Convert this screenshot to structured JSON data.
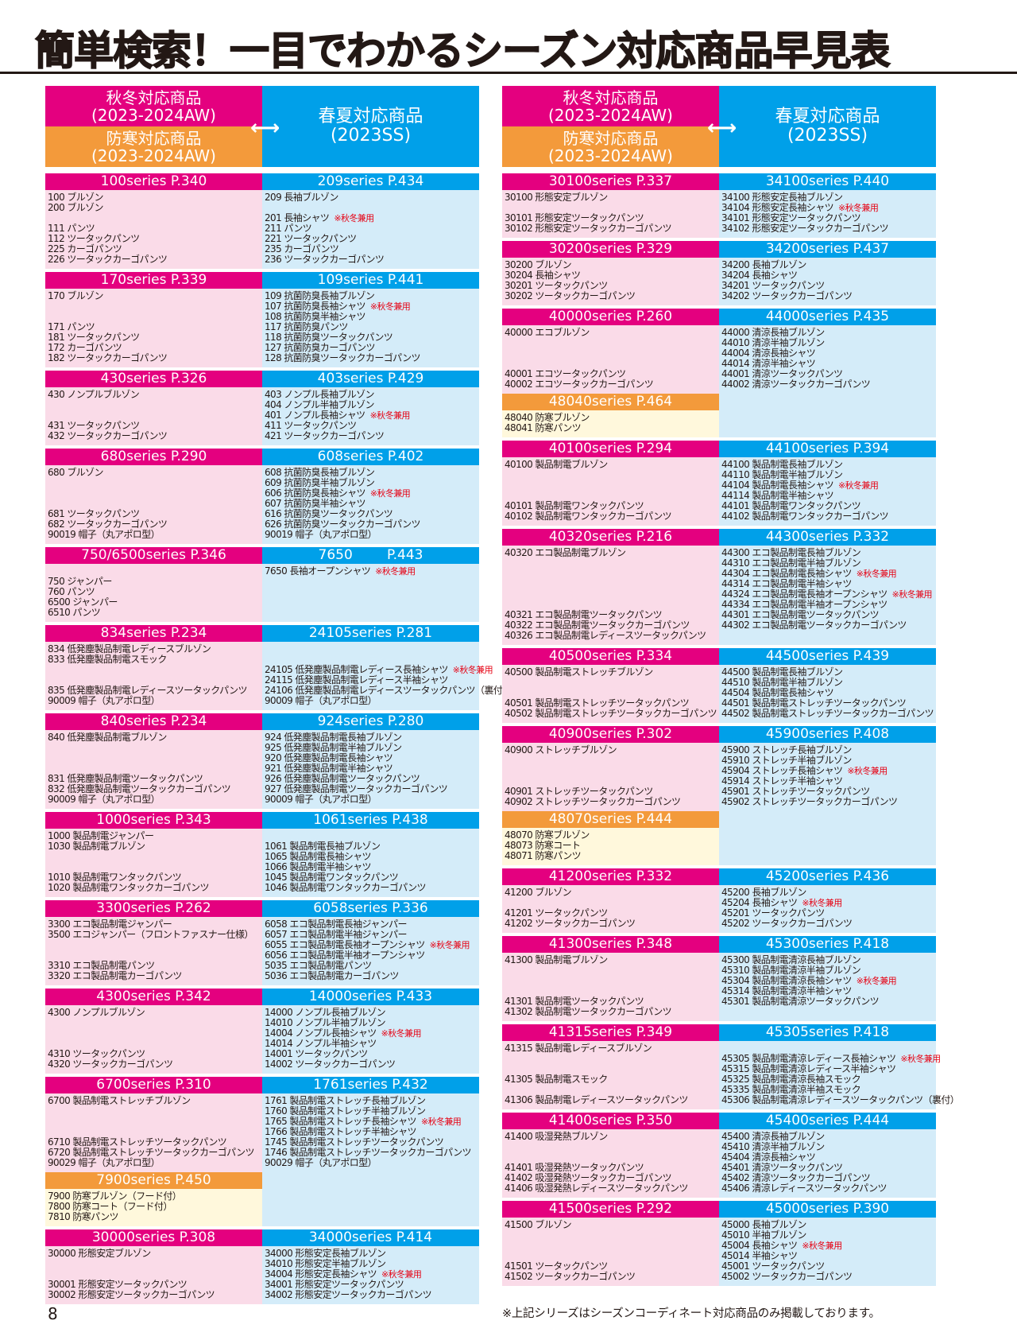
{
  "title": "簡単検索！一目でわかるシーズン対応商品早見表",
  "header": {
    "autumn_label": "秋冬対応商品",
    "autumn_season": "(2023-2024AW)",
    "cold_label": "防寒対応商品",
    "cold_season": "(2023-2024AW)",
    "ss_label": "春夏対応商品",
    "ss_season": "(2023SS)",
    "arrow": "⟷"
  },
  "colors": {
    "autumn": "#e4007f",
    "spring_summer": "#00a0e9",
    "cold": "#f39a3b",
    "note": "#e60012"
  },
  "columns": [
    {
      "blocks": [
        {
          "left": {
            "header": "100series P.340",
            "lines": [
              "100 ブルゾン",
              "200 ブルゾン",
              "",
              "111 パンツ",
              "112 ツータックパンツ",
              "225 カーゴパンツ",
              "226 ツータックカーゴパンツ"
            ]
          },
          "right": {
            "header": "209series P.434",
            "lines": [
              "209 長袖ブルゾン",
              "",
              {
                "t": "201 長袖シャツ",
                "note": "※秋冬兼用"
              },
              "211 パンツ",
              "221 ツータックパンツ",
              "235 カーゴパンツ",
              "236 ツータックカーゴパンツ"
            ]
          }
        },
        {
          "left": {
            "header": "170series P.339",
            "lines": [
              "170 ブルゾン",
              "",
              "",
              "171 パンツ",
              "181 ツータックパンツ",
              "172 カーゴパンツ",
              "182 ツータックカーゴパンツ"
            ]
          },
          "right": {
            "header": "109series P.441",
            "lines": [
              "109 抗菌防臭長袖ブルゾン",
              {
                "t": "107 抗菌防臭長袖シャツ",
                "note": "※秋冬兼用"
              },
              "108 抗菌防臭半袖シャツ",
              "117 抗菌防臭パンツ",
              "118 抗菌防臭ツータックパンツ",
              "127 抗菌防臭カーゴパンツ",
              "128 抗菌防臭ツータックカーゴパンツ"
            ]
          }
        },
        {
          "left": {
            "header": "430series P.326",
            "lines": [
              "430 ノンプルブルゾン",
              "",
              "",
              "431 ツータックパンツ",
              "432 ツータックカーゴパンツ"
            ]
          },
          "right": {
            "header": "403series P.429",
            "lines": [
              "403 ノンプル長袖ブルゾン",
              "404 ノンプル半袖ブルゾン",
              {
                "t": "401 ノンプル長袖シャツ",
                "note": "※秋冬兼用"
              },
              "411 ツータックパンツ",
              "421 ツータックカーゴパンツ"
            ]
          }
        },
        {
          "left": {
            "header": "680series P.290",
            "lines": [
              "680 ブルゾン",
              "",
              "",
              "",
              "681 ツータックパンツ",
              "682 ツータックカーゴパンツ",
              "90019 帽子（丸アポロ型）"
            ]
          },
          "right": {
            "header": "608series P.402",
            "lines": [
              "608 抗菌防臭長袖ブルゾン",
              "609 抗菌防臭半袖ブルゾン",
              {
                "t": "606 抗菌防臭長袖シャツ",
                "note": "※秋冬兼用"
              },
              "607 抗菌防臭半袖シャツ",
              "616 抗菌防臭ツータックパンツ",
              "626 抗菌防臭ツータックカーゴパンツ",
              "90019 帽子（丸アポロ型）"
            ]
          }
        },
        {
          "left": {
            "header": "750/6500series P.346",
            "lines": [
              "",
              "750 ジャンパー",
              "760 パンツ",
              "6500 ジャンパー",
              "6510 パンツ"
            ]
          },
          "right": {
            "header": "7650        P.443",
            "lines": [
              {
                "t": "7650 長袖オープンシャツ",
                "note": "※秋冬兼用"
              }
            ]
          }
        },
        {
          "left": {
            "header": "834series P.234",
            "lines": [
              "834 低発塵製品制電レディースブルゾン",
              "833 低発塵製品制電スモック",
              "",
              "",
              "835 低発塵製品制電レディースツータックパンツ",
              "90009 帽子（丸アポロ型）"
            ]
          },
          "right": {
            "header": "24105series P.281",
            "lines": [
              "",
              "",
              {
                "t": "24105 低発塵製品制電レディース長袖シャツ",
                "note": "※秋冬兼用"
              },
              "24115 低発塵製品制電レディース半袖シャツ",
              "24106 低発塵製品制電レディースツータックパンツ（裏付）",
              "90009 帽子（丸アポロ型）"
            ]
          }
        },
        {
          "left": {
            "header": "840series P.234",
            "lines": [
              "840 低発塵製品制電ブルゾン",
              "",
              "",
              "",
              "831 低発塵製品制電ツータックパンツ",
              "832 低発塵製品制電ツータックカーゴパンツ",
              "90009 帽子（丸アポロ型）"
            ]
          },
          "right": {
            "header": "924series P.280",
            "lines": [
              "924 低発塵製品制電長袖ブルゾン",
              "925 低発塵製品制電半袖ブルゾン",
              "920 低発塵製品制電長袖シャツ",
              "921 低発塵製品制電半袖シャツ",
              "926 低発塵製品制電ツータックパンツ",
              "927 低発塵製品制電ツータックカーゴパンツ",
              "90009 帽子（丸アポロ型）"
            ]
          }
        },
        {
          "left": {
            "header": "1000series P.343",
            "lines": [
              "1000 製品制電ジャンパー",
              "1030 製品制電ブルゾン",
              "",
              "",
              "1010 製品制電ワンタックパンツ",
              "1020 製品制電ワンタックカーゴパンツ"
            ]
          },
          "right": {
            "header": "1061series P.438",
            "lines": [
              "",
              "1061 製品制電長袖ブルゾン",
              "1065 製品制電長袖シャツ",
              "1066 製品制電半袖シャツ",
              "1045 製品制電ワンタックパンツ",
              "1046 製品制電ワンタックカーゴパンツ"
            ]
          }
        },
        {
          "left": {
            "header": "3300series P.262",
            "lines": [
              "3300 エコ製品制電ジャンパー",
              "3500 エコジャンパー（フロントファスナー仕様）",
              "",
              "",
              "3310 エコ製品制電パンツ",
              "3320 エコ製品制電カーゴパンツ"
            ]
          },
          "right": {
            "header": "6058series P.336",
            "lines": [
              "6058 エコ製品制電長袖ジャンパー",
              "6057 エコ製品制電半袖ジャンパー",
              {
                "t": "6055 エコ製品制電長袖オープンシャツ",
                "note": "※秋冬兼用"
              },
              "6056 エコ製品制電半袖オープンシャツ",
              "5035 エコ製品制電パンツ",
              "5036 エコ製品制電カーゴパンツ"
            ]
          }
        },
        {
          "left": {
            "header": "4300series P.342",
            "lines": [
              "4300 ノンプルブルゾン",
              "",
              "",
              "",
              "4310 ツータックパンツ",
              "4320 ツータックカーゴパンツ"
            ]
          },
          "right": {
            "header": "14000series P.433",
            "lines": [
              "14000 ノンプル長袖ブルゾン",
              "14010 ノンプル半袖ブルゾン",
              {
                "t": "14004 ノンプル長袖シャツ",
                "note": "※秋冬兼用"
              },
              "14014 ノンプル半袖シャツ",
              "14001 ツータックパンツ",
              "14002 ツータックカーゴパンツ"
            ]
          }
        },
        {
          "left": {
            "header": "6700series P.310",
            "lines": [
              "6700 製品制電ストレッチブルゾン",
              "",
              "",
              "",
              "6710 製品制電ストレッチツータックパンツ",
              "6720 製品制電ストレッチツータックカーゴパンツ",
              "90029 帽子（丸アポロ型）"
            ]
          },
          "left_cold": {
            "header": "7900series P.450",
            "lines": [
              "7900 防寒ブルゾン（フード付）",
              "7800 防寒コート（フード付）",
              "7810 防寒パンツ"
            ]
          },
          "right": {
            "header": "1761series P.432",
            "lines": [
              "1761 製品制電ストレッチ長袖ブルゾン",
              "1760 製品制電ストレッチ半袖ブルゾン",
              {
                "t": "1765 製品制電ストレッチ長袖シャツ",
                "note": "※秋冬兼用"
              },
              "1766 製品制電ストレッチ半袖シャツ",
              "1745 製品制電ストレッチツータックパンツ",
              "1746 製品制電ストレッチツータックカーゴパンツ",
              "90029 帽子（丸アポロ型）"
            ]
          }
        },
        {
          "left": {
            "header": "30000series P.308",
            "lines": [
              "30000 形態安定ブルゾン",
              "",
              "",
              "30001 形態安定ツータックパンツ",
              "30002 形態安定ツータックカーゴパンツ"
            ]
          },
          "right": {
            "header": "34000series P.414",
            "lines": [
              "34000 形態安定長袖ブルゾン",
              "34010 形態安定半袖ブルゾン",
              {
                "t": "34004 形態安定長袖シャツ",
                "note": "※秋冬兼用"
              },
              "34001 形態安定ツータックパンツ",
              "34002 形態安定ツータックカーゴパンツ"
            ]
          }
        }
      ]
    },
    {
      "blocks": [
        {
          "left": {
            "header": "30100series P.337",
            "lines": [
              "30100 形態安定ブルゾン",
              "",
              "30101 形態安定ツータックパンツ",
              "30102 形態安定ツータックカーゴパンツ"
            ]
          },
          "right": {
            "header": "34100series P.440",
            "lines": [
              "34100 形態安定長袖ブルゾン",
              {
                "t": "34104 形態安定長袖シャツ",
                "note": "※秋冬兼用"
              },
              "34101 形態安定ツータックパンツ",
              "34102 形態安定ツータックカーゴパンツ"
            ]
          }
        },
        {
          "left": {
            "header": "30200series P.329",
            "lines": [
              "30200 ブルゾン",
              "30204 長袖シャツ",
              "30201 ツータックパンツ",
              "30202 ツータックカーゴパンツ"
            ]
          },
          "right": {
            "header": "34200series P.437",
            "lines": [
              "34200 長袖ブルゾン",
              "34204 長袖シャツ",
              "34201 ツータックパンツ",
              "34202 ツータックカーゴパンツ"
            ]
          }
        },
        {
          "left": {
            "header": "40000series P.260",
            "lines": [
              "40000 エコブルゾン",
              "",
              "",
              "",
              "40001 エコツータックパンツ",
              "40002 エコツータックカーゴパンツ"
            ]
          },
          "left_cold": {
            "header": "48040series P.464",
            "lines": [
              "48040 防寒ブルゾン",
              "48041 防寒パンツ"
            ]
          },
          "right": {
            "header": "44000series P.435",
            "lines": [
              "44000 清涼長袖ブルゾン",
              "44010 清涼半袖ブルゾン",
              "44004 清涼長袖シャツ",
              "44014 清涼半袖シャツ",
              "44001 清涼ツータックパンツ",
              "44002 清涼ツータックカーゴパンツ"
            ]
          }
        },
        {
          "left": {
            "header": "40100series P.294",
            "lines": [
              "40100 製品制電ブルゾン",
              "",
              "",
              "",
              "40101 製品制電ワンタックパンツ",
              "40102 製品制電ワンタックカーゴパンツ"
            ]
          },
          "right": {
            "header": "44100series P.394",
            "lines": [
              "44100 製品制電長袖ブルゾン",
              "44110 製品制電半袖ブルゾン",
              {
                "t": "44104 製品制電長袖シャツ",
                "note": "※秋冬兼用"
              },
              "44114 製品制電半袖シャツ",
              "44101 製品制電ワンタックパンツ",
              "44102 製品制電ワンタックカーゴパンツ"
            ]
          }
        },
        {
          "left": {
            "header": "40320series P.216",
            "lines": [
              "40320 エコ製品制電ブルゾン",
              "",
              "",
              "",
              "",
              "",
              "40321 エコ製品制電ツータックパンツ",
              "40322 エコ製品制電ツータックカーゴパンツ",
              "40326 エコ製品制電レディースツータックパンツ"
            ]
          },
          "right": {
            "header": "44300series P.332",
            "lines": [
              "44300 エコ製品制電長袖ブルゾン",
              "44310 エコ製品制電半袖ブルゾン",
              {
                "t": "44304 エコ製品制電長袖シャツ",
                "note": "※秋冬兼用"
              },
              "44314 エコ製品制電半袖シャツ",
              {
                "t": "44324 エコ製品制電長袖オープンシャツ",
                "note": "※秋冬兼用"
              },
              "44334 エコ製品制電半袖オープンシャツ",
              "44301 エコ製品制電ツータックパンツ",
              "44302 エコ製品制電ツータックカーゴパンツ"
            ]
          }
        },
        {
          "left": {
            "header": "40500series P.334",
            "lines": [
              "40500 製品制電ストレッチブルゾン",
              "",
              "",
              "40501 製品制電ストレッチツータックパンツ",
              "40502 製品制電ストレッチツータックカーゴパンツ"
            ]
          },
          "right": {
            "header": "44500series P.439",
            "lines": [
              "44500 製品制電長袖ブルゾン",
              "44510 製品制電半袖ブルゾン",
              "44504 製品制電長袖シャツ",
              "44501 製品制電ストレッチツータックパンツ",
              "44502 製品制電ストレッチツータックカーゴパンツ"
            ]
          }
        },
        {
          "left": {
            "header": "40900series P.302",
            "lines": [
              "40900 ストレッチブルゾン",
              "",
              "",
              "",
              "40901 ストレッチツータックパンツ",
              "40902 ストレッチツータックカーゴパンツ"
            ]
          },
          "left_cold": {
            "header": "48070series P.444",
            "lines": [
              "48070 防寒ブルゾン",
              "48073 防寒コート",
              "48071 防寒パンツ"
            ]
          },
          "right": {
            "header": "45900series P.408",
            "lines": [
              "45900 ストレッチ長袖ブルゾン",
              "45910 ストレッチ半袖ブルゾン",
              {
                "t": "45904 ストレッチ長袖シャツ",
                "note": "※秋冬兼用"
              },
              "45914 ストレッチ半袖シャツ",
              "45901 ストレッチツータックパンツ",
              "45902 ストレッチツータックカーゴパンツ"
            ]
          }
        },
        {
          "left": {
            "header": "41200series P.332",
            "lines": [
              "41200 ブルゾン",
              "",
              "41201 ツータックパンツ",
              "41202 ツータックカーゴパンツ"
            ]
          },
          "right": {
            "header": "45200series P.436",
            "lines": [
              "45200 長袖ブルゾン",
              {
                "t": "45204 長袖シャツ",
                "note": "※秋冬兼用"
              },
              "45201 ツータックパンツ",
              "45202 ツータックカーゴパンツ"
            ]
          }
        },
        {
          "left": {
            "header": "41300series P.348",
            "lines": [
              "41300 製品制電ブルゾン",
              "",
              "",
              "",
              "41301 製品制電ツータックパンツ",
              "41302 製品制電ツータックカーゴパンツ"
            ]
          },
          "right": {
            "header": "45300series P.418",
            "lines": [
              "45300 製品制電清涼長袖ブルゾン",
              "45310 製品制電清涼半袖ブルゾン",
              {
                "t": "45304 製品制電清涼長袖シャツ",
                "note": "※秋冬兼用"
              },
              "45314 製品制電清涼半袖シャツ",
              "45301 製品制電清涼ツータックパンツ"
            ]
          }
        },
        {
          "left": {
            "header": "41315series P.349",
            "lines": [
              "41315 製品制電レディースブルゾン",
              "",
              "",
              "41305 製品制電スモック",
              "",
              "41306 製品制電レディースツータックパンツ"
            ]
          },
          "right": {
            "header": "45305series P.418",
            "lines": [
              "",
              {
                "t": "45305 製品制電清涼レディース長袖シャツ",
                "note": "※秋冬兼用"
              },
              "45315 製品制電清涼レディース半袖シャツ",
              "45325 製品制電清涼長袖スモック",
              "45335 製品制電清涼半袖スモック",
              "45306 製品制電清涼レディースツータックパンツ（裏付）"
            ]
          }
        },
        {
          "left": {
            "header": "41400series P.350",
            "lines": [
              "41400 吸湿発熱ブルゾン",
              "",
              "",
              "41401 吸湿発熱ツータックパンツ",
              "41402 吸湿発熱ツータックカーゴパンツ",
              "41406 吸湿発熱レディースツータックパンツ"
            ]
          },
          "right": {
            "header": "45400series P.444",
            "lines": [
              "45400 清涼長袖ブルゾン",
              "45410 清涼半袖ブルゾン",
              "45404 清涼長袖シャツ",
              "45401 清涼ツータックパンツ",
              "45402 清涼ツータックカーゴパンツ",
              "45406 清涼レディースツータックパンツ"
            ]
          }
        },
        {
          "left": {
            "header": "41500series P.292",
            "lines": [
              "41500 ブルゾン",
              "",
              "",
              "",
              "41501 ツータックパンツ",
              "41502 ツータックカーゴパンツ"
            ]
          },
          "right": {
            "header": "45000series P.390",
            "lines": [
              "45000 長袖ブルゾン",
              "45010 半袖ブルゾン",
              {
                "t": "45004 長袖シャツ",
                "note": "※秋冬兼用"
              },
              "45014 半袖シャツ",
              "45001 ツータックパンツ",
              "45002 ツータックカーゴパンツ"
            ]
          }
        }
      ]
    }
  ],
  "footer": {
    "page_number": "8",
    "note": "※上記シリーズはシーズンコーディネート対応商品のみ掲載しております。"
  }
}
